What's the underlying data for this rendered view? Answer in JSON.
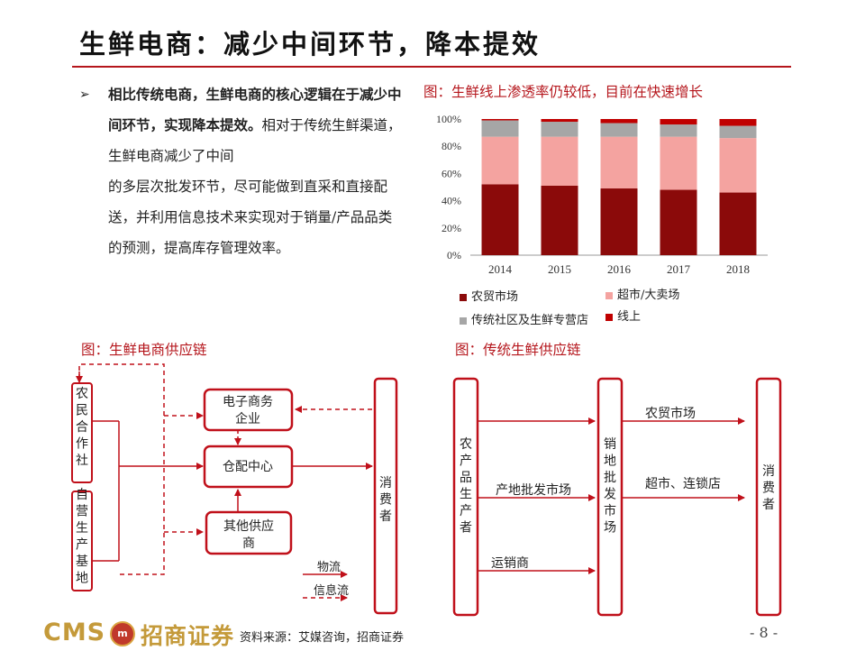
{
  "title": "生鲜电商：减少中间环节，降本提效",
  "bullet": {
    "arrow": "➢",
    "bold_text": "相比传统电商，生鲜电商的核心逻辑在于减少中间环节，实现降本提效。",
    "normal_text": "相对于传统生鲜渠道，生鲜电商减少了中间",
    "continuation": "的多层次批发环节，尽可能做到直采和直接配送，并利用信息技术来实现对于销量/产品品类的预测，提高库存管理效率。"
  },
  "chart_caption": "图：生鲜线上渗透率仍较低，目前在快速增长",
  "chart_data": {
    "type": "bar",
    "stacked": true,
    "categories": [
      "2014",
      "2015",
      "2016",
      "2017",
      "2018"
    ],
    "y_ticks": [
      "0%",
      "20%",
      "40%",
      "60%",
      "80%",
      "100%"
    ],
    "ylim": [
      0,
      100
    ],
    "series": [
      {
        "name": "农贸市场",
        "color": "#8b0a0a",
        "values": [
          52,
          51,
          49,
          48,
          46
        ]
      },
      {
        "name": "超市/大卖场",
        "color": "#f4a3a0",
        "values": [
          35,
          36,
          38,
          39,
          40
        ]
      },
      {
        "name": "传统社区及生鲜专营店",
        "color": "#a6a6a6",
        "values": [
          12,
          11,
          10,
          9,
          9
        ]
      },
      {
        "name": "线上",
        "color": "#c00000",
        "values": [
          1,
          2,
          3,
          4,
          5
        ]
      }
    ]
  },
  "left_diagram": {
    "caption": "图：生鲜电商供应链",
    "nodes": {
      "coop": "农民合作社",
      "base": "自营生产基地",
      "ecom": [
        "电子商务",
        "企业"
      ],
      "warehouse": "仓配中心",
      "other": [
        "其他供应",
        "商"
      ],
      "consumer": "消费者"
    },
    "legend": {
      "logistics": "物流",
      "info": "信息流"
    }
  },
  "right_diagram": {
    "caption": "图：传统生鲜供应链",
    "nodes": {
      "producer": "农产品生产者",
      "market": "销地批发市场",
      "consumer": "消费者"
    },
    "labels": {
      "origin_market": "产地批发市场",
      "trader": "运销商",
      "farm_market": "农贸市场",
      "supermarket": "超市、连锁店"
    }
  },
  "footer": {
    "logo_text": "CMS",
    "badge": "m",
    "company": "招商证券",
    "source": "资料来源：艾媒咨询，招商证券",
    "page": "- 8 -"
  }
}
